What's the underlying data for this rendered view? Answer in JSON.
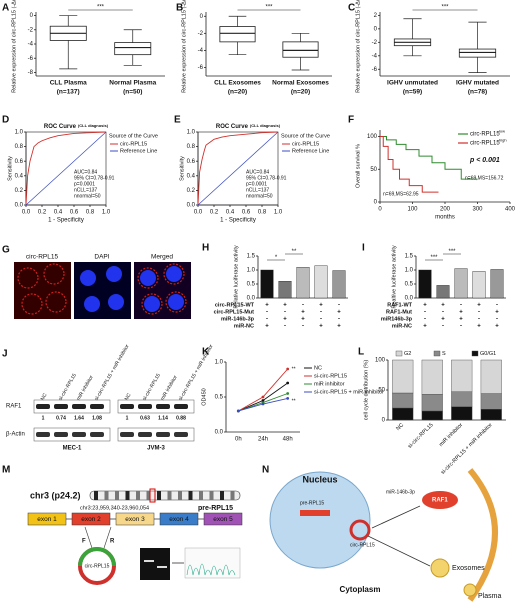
{
  "chart_data": [
    {
      "panel": "A",
      "type": "box",
      "ylabel": "Relative expression of circ-RPL15 (-Δct)",
      "categories": [
        "CLL Plasma",
        "Normal Plasma"
      ],
      "counts": [
        "(n=137)",
        "(n=50)"
      ],
      "ylim": [
        -8.5,
        0.5
      ],
      "yticks": [
        0,
        -2,
        -4,
        -6,
        -8
      ],
      "stats": [
        {
          "min": -7.5,
          "q1": -3.5,
          "median": -2.5,
          "q3": -1.5,
          "max": 0
        },
        {
          "min": -7,
          "q1": -5.5,
          "median": -4.5,
          "q3": -3.8,
          "max": -2
        }
      ],
      "annotation": "***"
    },
    {
      "panel": "B",
      "type": "box",
      "ylabel": "Relative expression of circ-RPL15 (-Δct)",
      "categories": [
        "CLL Exosomes",
        "Normal Exosomes"
      ],
      "counts": [
        "(n=20)",
        "(n=20)"
      ],
      "ylim": [
        -7,
        0.5
      ],
      "yticks": [
        0,
        -2,
        -4,
        -6
      ],
      "stats": [
        {
          "min": -4.5,
          "q1": -3,
          "median": -2,
          "q3": -1.2,
          "max": 0
        },
        {
          "min": -6.3,
          "q1": -4.8,
          "median": -4,
          "q3": -3,
          "max": -2
        }
      ],
      "annotation": "***"
    },
    {
      "panel": "C",
      "type": "box",
      "ylabel": "Relative expression of circ-RPL15 (-Δct)",
      "categories": [
        "IGHV unmutated",
        "IGHV mutated"
      ],
      "counts": [
        "(n=59)",
        "(n=78)"
      ],
      "ylim": [
        -7,
        2.5
      ],
      "yticks": [
        2,
        0,
        -2,
        -4,
        -6
      ],
      "stats": [
        {
          "min": -4,
          "q1": -2.5,
          "median": -2,
          "q3": -1.5,
          "max": 1.5
        },
        {
          "min": -6.5,
          "q1": -4.2,
          "median": -3.5,
          "q3": -3,
          "max": 1
        }
      ],
      "annotation": "***"
    },
    {
      "panel": "D",
      "type": "roc",
      "title": "ROC Curve",
      "subtitle": "(CLL diagnosis)",
      "xlabel": "1 - Specificity",
      "ylabel": "Sensitivity",
      "xlim": [
        0,
        1
      ],
      "ylim": [
        0,
        1
      ],
      "xticks": [
        {
          "value": 0,
          "label": "0.0"
        },
        0.2,
        0.4,
        0.6,
        0.8,
        {
          "value": 1,
          "label": "1.0"
        }
      ],
      "yticks": [
        {
          "value": 0,
          "label": "0.0"
        },
        0.2,
        0.4,
        0.6,
        0.8,
        {
          "value": 1,
          "label": "1.0"
        }
      ],
      "legend_title": "Source of the Curve",
      "series": [
        {
          "name": "circ-RPL15",
          "color": "#d0302c",
          "x": [
            0,
            0.02,
            0.05,
            0.08,
            0.1,
            0.15,
            0.2,
            0.3,
            0.4,
            0.6,
            0.8,
            1
          ],
          "values": [
            0,
            0.4,
            0.6,
            0.72,
            0.8,
            0.85,
            0.88,
            0.92,
            0.95,
            0.98,
            0.99,
            1
          ]
        },
        {
          "name": "Reference Line",
          "color": "#3b4cc0",
          "x": [
            0,
            1
          ],
          "values": [
            0,
            1
          ]
        }
      ],
      "annotations": [
        "AUC=0.84",
        "95% CI=0.78-0.91",
        "p=0.0001",
        "nCLL=137",
        "nnormal=50"
      ]
    },
    {
      "panel": "E",
      "type": "roc",
      "title": "ROC Curve",
      "subtitle": "(CLL diagnosis)",
      "xlabel": "1 - Specificity",
      "ylabel": "Sensitivity",
      "xlim": [
        0,
        1
      ],
      "ylim": [
        0,
        1
      ],
      "xticks": [
        {
          "value": 0,
          "label": "0.0"
        },
        0.2,
        0.4,
        0.6,
        0.8,
        {
          "value": 1,
          "label": "1.0"
        }
      ],
      "yticks": [
        {
          "value": 0,
          "label": "0.0"
        },
        0.2,
        0.4,
        0.6,
        0.8,
        {
          "value": 1,
          "label": "1.0"
        }
      ],
      "legend_title": "Source of the Curve",
      "series": [
        {
          "name": "circ-RPL15",
          "color": "#d0302c",
          "x": [
            0,
            0.02,
            0.05,
            0.08,
            0.1,
            0.15,
            0.2,
            0.3,
            0.4,
            0.6,
            0.8,
            1
          ],
          "values": [
            0,
            0.45,
            0.62,
            0.75,
            0.82,
            0.86,
            0.9,
            0.93,
            0.95,
            0.97,
            0.99,
            1
          ]
        },
        {
          "name": "Reference Line",
          "color": "#3b4cc0",
          "x": [
            0,
            1
          ],
          "values": [
            0,
            1
          ]
        }
      ],
      "annotations": [
        "AUC=0.84",
        "95% CI=0.78-0.91",
        "p=0.0001",
        "nCLL=137",
        "nnormal=50"
      ]
    },
    {
      "panel": "F",
      "type": "km",
      "xlabel": "months",
      "ylabel": "Overall survival %",
      "xlim": [
        0,
        400
      ],
      "ylim": [
        0,
        110
      ],
      "xticks": [
        0,
        100,
        200,
        300,
        400
      ],
      "yticks": [
        0,
        50,
        100
      ],
      "series": [
        {
          "name": "circ-RPL15",
          "sup": "low",
          "color": "#2e8b2e",
          "x": [
            0,
            20,
            20,
            50,
            50,
            80,
            80,
            120,
            120,
            160,
            160,
            200,
            200,
            250,
            250,
            300
          ],
          "values": [
            100,
            100,
            95,
            95,
            88,
            88,
            80,
            80,
            70,
            70,
            60,
            60,
            50,
            50,
            35,
            35
          ]
        },
        {
          "name": "circ-RPL15",
          "sup": "high",
          "color": "#d0302c",
          "x": [
            0,
            10,
            10,
            25,
            25,
            40,
            40,
            60,
            60,
            90,
            90,
            130,
            130,
            180
          ],
          "values": [
            100,
            100,
            85,
            85,
            65,
            65,
            50,
            50,
            35,
            35,
            25,
            25,
            15,
            15
          ]
        }
      ],
      "annotations": [
        "p < 0.001",
        "n=69,MS=156.72",
        "n=69,MS=62.95"
      ]
    },
    {
      "panel": "H",
      "type": "bar",
      "ylabel": "Relative luciferase activity",
      "ylim": [
        0,
        1.5
      ],
      "yticks": [
        {
          "value": 0,
          "label": "0.0"
        },
        0.5,
        {
          "value": 1,
          "label": "1.0"
        },
        1.5
      ],
      "values": [
        1,
        0.6,
        1.1,
        1.15,
        0.98
      ],
      "colors": [
        "#111111",
        "#777777",
        "#bbbbbb",
        "#dddddd",
        "#999999"
      ],
      "rows": [
        {
          "name": "circ-RPL15-WT",
          "signs": [
            "+",
            "+",
            "-",
            "+",
            "-"
          ]
        },
        {
          "name": "circ-RPL15-Mut",
          "signs": [
            "-",
            "-",
            "+",
            "-",
            "+"
          ]
        },
        {
          "name": "miR-146b-3p",
          "signs": [
            "-",
            "+",
            "+",
            "-",
            "-"
          ]
        },
        {
          "name": "miR-NC",
          "signs": [
            "+",
            "-",
            "-",
            "+",
            "+"
          ]
        }
      ],
      "annotations": [
        "*",
        "**"
      ]
    },
    {
      "panel": "I",
      "type": "bar",
      "ylabel": "Realtive luciferase activity",
      "ylim": [
        0,
        1.5
      ],
      "yticks": [
        {
          "value": 0,
          "label": "0.0"
        },
        0.5,
        {
          "value": 1,
          "label": "1.0"
        },
        1.5
      ],
      "values": [
        1,
        0.45,
        1.05,
        0.95,
        1.02
      ],
      "colors": [
        "#111111",
        "#777777",
        "#bbbbbb",
        "#dddddd",
        "#999999"
      ],
      "rows": [
        {
          "name": "RAF1-WT",
          "signs": [
            "+",
            "+",
            "-",
            "+",
            "-"
          ]
        },
        {
          "name": "RAF1-Mut",
          "signs": [
            "-",
            "-",
            "+",
            "-",
            "+"
          ]
        },
        {
          "name": "miR146b-3p",
          "signs": [
            "-",
            "+",
            "+",
            "-",
            "-"
          ]
        },
        {
          "name": "miR-NC",
          "signs": [
            "+",
            "-",
            "-",
            "+",
            "+"
          ]
        }
      ],
      "annotations": [
        "***",
        "***"
      ]
    },
    {
      "panel": "K",
      "type": "line",
      "ylabel": "OD450",
      "categories": [
        "0h",
        "24h",
        "48h"
      ],
      "ylim": [
        0,
        1
      ],
      "yticks": [
        {
          "value": 0,
          "label": "0.0"
        },
        0.5,
        {
          "value": 1,
          "label": "1.0"
        }
      ],
      "series": [
        {
          "name": "NC",
          "color": "#111111",
          "values": [
            0.3,
            0.45,
            0.7
          ]
        },
        {
          "name": "si-circ-RPL15",
          "color": "#d0302c",
          "values": [
            0.3,
            0.5,
            0.9
          ]
        },
        {
          "name": "miR inhibitor",
          "color": "#2e8b2e",
          "values": [
            0.3,
            0.42,
            0.55
          ]
        },
        {
          "name": "si-circ-RPL15 + miR inhibitor",
          "color": "#3b4cc0",
          "values": [
            0.3,
            0.4,
            0.48
          ]
        }
      ],
      "annotations": [
        "**",
        "**"
      ]
    },
    {
      "panel": "L",
      "type": "stacked",
      "ylabel": "cell cycle distribution (%)",
      "categories": [
        "NC",
        "si-circ-RPL15",
        "miR inhibitor",
        "si-circ-RPL15 + miR inhibitor"
      ],
      "ylim": [
        0,
        100
      ],
      "yticks": [
        0,
        50,
        100
      ],
      "series": [
        {
          "name": "G0/G1",
          "color": "#111111",
          "values": [
            20,
            15,
            22,
            18
          ]
        },
        {
          "name": "S",
          "color": "#8a8a8a",
          "values": [
            25,
            28,
            25,
            26
          ]
        },
        {
          "name": "G2",
          "color": "#d6d6d6",
          "values": [
            55,
            57,
            53,
            56
          ]
        }
      ]
    }
  ],
  "panel_g": {
    "label": "G",
    "channels": [
      "circ-RPL15",
      "DAPI",
      "Merged"
    ]
  },
  "panel_j": {
    "label": "J",
    "lanes": [
      "NC",
      "si-circ-RPL15",
      "miR inhibitor",
      "si-circ-RPL15 + miR inhibitor"
    ],
    "proteins": [
      "RAF1",
      "β-Actin"
    ],
    "blots": [
      {
        "cell": "MEC-1",
        "ratios": [
          1,
          0.74,
          1.64,
          1.08
        ]
      },
      {
        "cell": "JVM-3",
        "ratios": [
          1,
          0.63,
          1.14,
          0.88
        ]
      }
    ]
  },
  "panel_m": {
    "label": "M",
    "chromosome": "chr3 (p24.2)",
    "pre": "pre-RPL15",
    "coords": "chr3:23,959,340-23,960,054",
    "exons": [
      "exon 1",
      "exon 2",
      "exon 3",
      "exon 4",
      "exon 5"
    ],
    "primers": [
      "F",
      "R"
    ],
    "circ": "circ-RPL15"
  },
  "panel_n": {
    "label": "N",
    "texts": [
      "Nucleus",
      "Cytoplasm",
      "Exosomes",
      "Plasma",
      "RAF1",
      "pre-RPL15",
      "circ-RPL15",
      "miR-146b-3p"
    ]
  }
}
